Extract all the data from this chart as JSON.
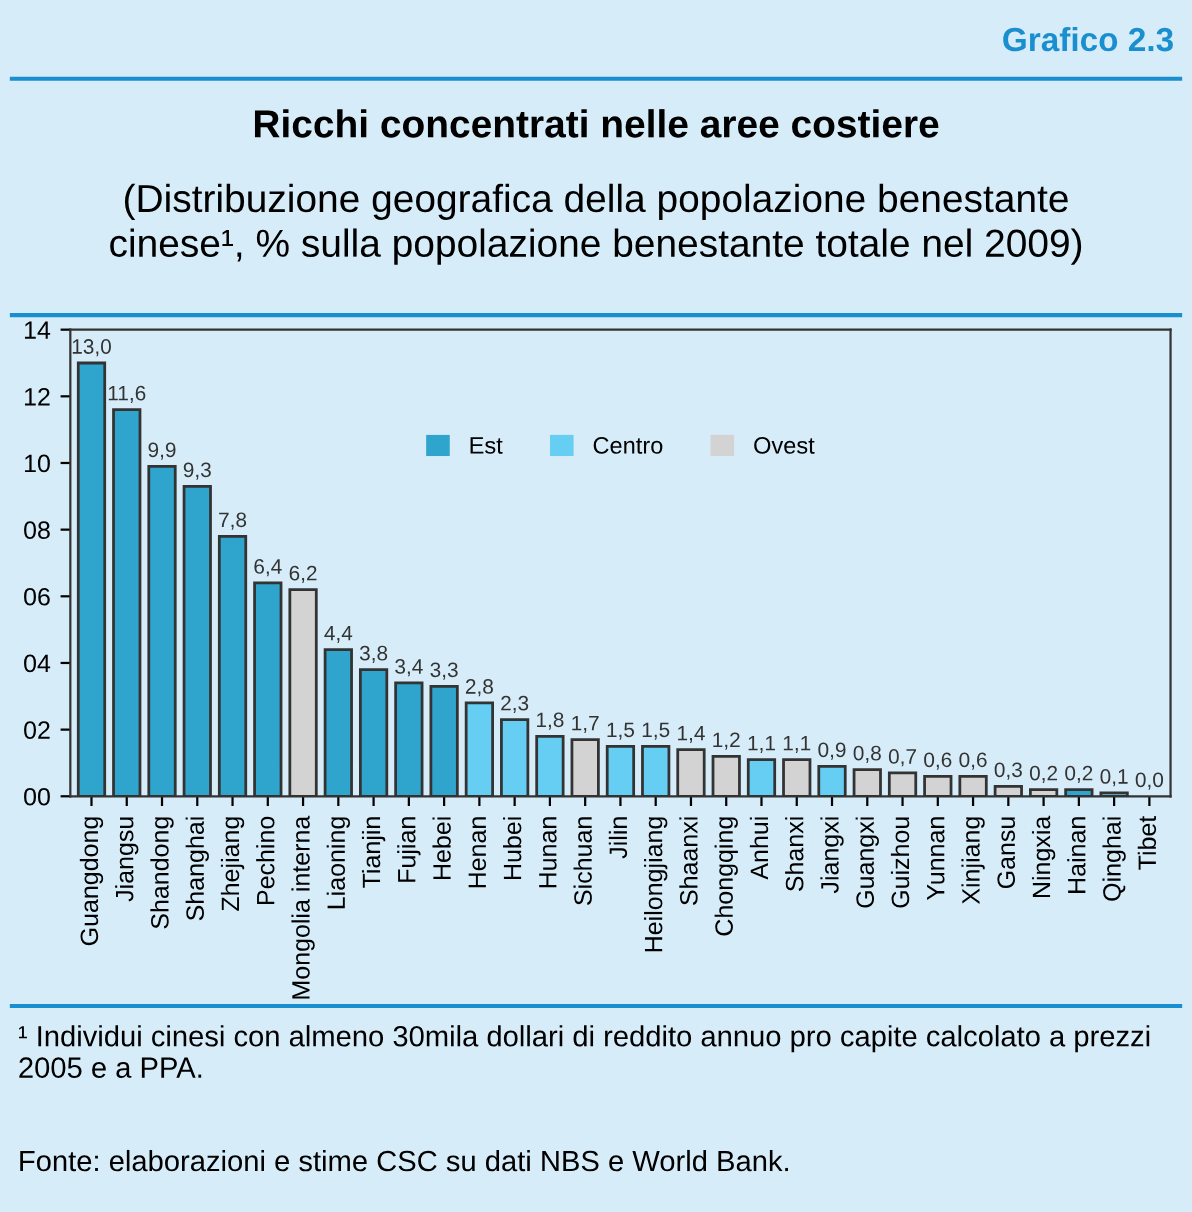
{
  "chart_data": {
    "type": "bar",
    "stacked": true,
    "title": "Ricchi concentrati nelle aree costiere",
    "subtitle": "(Distribuzione geografica della popolazione benestante\ncinese¹, % sulla popolazione benestante totale nel 2009)",
    "annotations": [
      "Grafico 2.3",
      "¹ Individui cinesi con almeno 30mila dollari di reddito annuo pro capite calcolato a prezzi 2005 e a PPA.",
      "Fonte: elaborazioni e stime CSC su dati NBS e World Bank."
    ],
    "categories": [
      "Guangdong",
      "Jiangsu",
      "Shandong",
      "Shanghai",
      "Zhejiang",
      "Pechino",
      "Mongolia interna",
      "Liaoning",
      "Tianjin",
      "Fujian",
      "Hebei",
      "Henan",
      "Hubei",
      "Hunan",
      "Sichuan",
      "Jilin",
      "Heilongjiang",
      "Shaanxi",
      "Chongqing",
      "Anhui",
      "Shanxi",
      "Jiangxi",
      "Guangxi",
      "Guizhou",
      "Yunnan",
      "Xinjiang",
      "Gansu",
      "Ningxia",
      "Hainan",
      "Qinghai",
      "Tibet"
    ],
    "series": [
      {
        "name": "Est",
        "color": "#2fa5cd",
        "values": [
          13.0,
          11.6,
          9.9,
          9.3,
          7.8,
          6.4,
          null,
          4.4,
          3.8,
          3.4,
          3.3,
          null,
          null,
          null,
          null,
          null,
          null,
          null,
          null,
          null,
          null,
          null,
          null,
          null,
          null,
          null,
          null,
          null,
          0.2,
          null,
          null
        ],
        "value_labels": [
          "13,0",
          "11,6",
          "9,9",
          "9,3",
          "7,8",
          "6,4",
          null,
          "4,4",
          "3,8",
          "3,4",
          "3,3",
          null,
          null,
          null,
          null,
          null,
          null,
          null,
          null,
          null,
          null,
          null,
          null,
          null,
          null,
          null,
          null,
          null,
          "0,2",
          null,
          null
        ]
      },
      {
        "name": "Centro",
        "color": "#66cdf3",
        "values": [
          null,
          null,
          null,
          null,
          null,
          null,
          null,
          null,
          null,
          null,
          null,
          2.8,
          2.3,
          1.8,
          null,
          1.5,
          1.5,
          null,
          null,
          1.1,
          null,
          0.9,
          null,
          null,
          null,
          null,
          null,
          null,
          null,
          0.1,
          null
        ],
        "value_labels": [
          null,
          null,
          null,
          null,
          null,
          null,
          null,
          null,
          null,
          null,
          null,
          "2,8",
          "2,3",
          "1,8",
          null,
          "1,5",
          "1,5",
          null,
          null,
          "1,1",
          null,
          "0,9",
          null,
          null,
          null,
          null,
          null,
          null,
          null,
          "0,1",
          null
        ]
      },
      {
        "name": "Ovest",
        "color": "#d3d3d3",
        "values": [
          null,
          null,
          null,
          null,
          null,
          null,
          6.2,
          null,
          null,
          null,
          null,
          null,
          null,
          null,
          1.7,
          null,
          null,
          1.4,
          1.2,
          null,
          1.1,
          null,
          0.8,
          0.7,
          0.6,
          0.6,
          0.3,
          0.2,
          null,
          null,
          0.0
        ],
        "value_labels": [
          null,
          null,
          null,
          null,
          null,
          null,
          "6,2",
          null,
          null,
          null,
          null,
          null,
          null,
          null,
          "1,7",
          null,
          null,
          "1,4",
          "1,2",
          null,
          "1,1",
          null,
          "0,8",
          "0,7",
          "0,6",
          "0,6",
          "0,3",
          "0,2",
          null,
          null,
          "0,0"
        ]
      }
    ],
    "ylim": [
      0,
      14
    ],
    "yticks": [
      {
        "value": 0,
        "label": "00"
      },
      {
        "value": 2,
        "label": "02"
      },
      {
        "value": 4,
        "label": "04"
      },
      {
        "value": 6,
        "label": "06"
      },
      {
        "value": 8,
        "label": "08"
      },
      {
        "value": 10,
        "label": "10"
      },
      {
        "value": 12,
        "label": "12"
      },
      {
        "value": 14,
        "label": "14"
      }
    ],
    "legend": "top"
  }
}
